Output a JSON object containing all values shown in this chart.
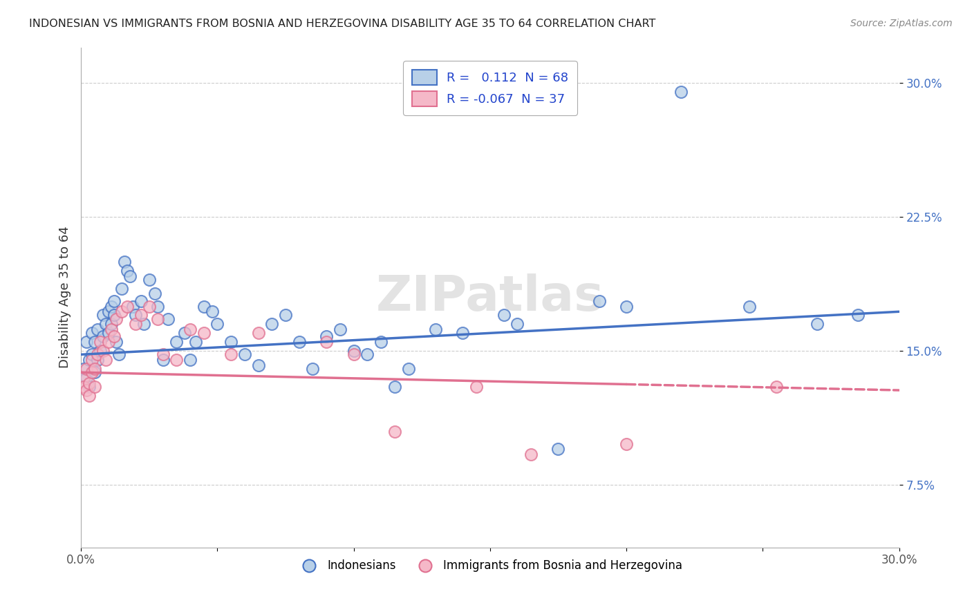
{
  "title": "INDONESIAN VS IMMIGRANTS FROM BOSNIA AND HERZEGOVINA DISABILITY AGE 35 TO 64 CORRELATION CHART",
  "source": "Source: ZipAtlas.com",
  "ylabel": "Disability Age 35 to 64",
  "xlim": [
    0.0,
    0.3
  ],
  "ylim": [
    0.04,
    0.32
  ],
  "xticks": [
    0.0,
    0.05,
    0.1,
    0.15,
    0.2,
    0.25,
    0.3
  ],
  "xticklabels": [
    "0.0%",
    "",
    "",
    "",
    "",
    "",
    "30.0%"
  ],
  "yticks": [
    0.075,
    0.15,
    0.225,
    0.3
  ],
  "yticklabels": [
    "7.5%",
    "15.0%",
    "22.5%",
    "30.0%"
  ],
  "r_blue": 0.112,
  "n_blue": 68,
  "r_pink": -0.067,
  "n_pink": 37,
  "blue_color": "#b8d0e8",
  "pink_color": "#f5b8c8",
  "line_blue": "#4472c4",
  "line_pink": "#e07090",
  "watermark": "ZIPatlas",
  "blue_scatter_x": [
    0.001,
    0.002,
    0.002,
    0.003,
    0.003,
    0.004,
    0.004,
    0.005,
    0.005,
    0.006,
    0.006,
    0.007,
    0.008,
    0.008,
    0.009,
    0.01,
    0.01,
    0.011,
    0.011,
    0.012,
    0.012,
    0.013,
    0.014,
    0.015,
    0.016,
    0.017,
    0.018,
    0.019,
    0.02,
    0.022,
    0.023,
    0.025,
    0.027,
    0.028,
    0.03,
    0.032,
    0.035,
    0.038,
    0.04,
    0.042,
    0.045,
    0.048,
    0.05,
    0.055,
    0.06,
    0.065,
    0.07,
    0.075,
    0.08,
    0.085,
    0.09,
    0.095,
    0.1,
    0.105,
    0.11,
    0.115,
    0.12,
    0.13,
    0.14,
    0.155,
    0.16,
    0.175,
    0.19,
    0.2,
    0.22,
    0.245,
    0.27,
    0.285
  ],
  "blue_scatter_y": [
    0.14,
    0.155,
    0.135,
    0.145,
    0.13,
    0.16,
    0.148,
    0.155,
    0.138,
    0.162,
    0.145,
    0.15,
    0.158,
    0.17,
    0.165,
    0.16,
    0.172,
    0.175,
    0.165,
    0.17,
    0.178,
    0.155,
    0.148,
    0.185,
    0.2,
    0.195,
    0.192,
    0.175,
    0.17,
    0.178,
    0.165,
    0.19,
    0.182,
    0.175,
    0.145,
    0.168,
    0.155,
    0.16,
    0.145,
    0.155,
    0.175,
    0.172,
    0.165,
    0.155,
    0.148,
    0.142,
    0.165,
    0.17,
    0.155,
    0.14,
    0.158,
    0.162,
    0.15,
    0.148,
    0.155,
    0.13,
    0.14,
    0.162,
    0.16,
    0.17,
    0.165,
    0.095,
    0.178,
    0.175,
    0.295,
    0.175,
    0.165,
    0.17
  ],
  "pink_scatter_x": [
    0.001,
    0.001,
    0.002,
    0.002,
    0.003,
    0.003,
    0.004,
    0.004,
    0.005,
    0.005,
    0.006,
    0.007,
    0.008,
    0.009,
    0.01,
    0.011,
    0.012,
    0.013,
    0.015,
    0.017,
    0.02,
    0.022,
    0.025,
    0.028,
    0.03,
    0.035,
    0.04,
    0.045,
    0.055,
    0.065,
    0.09,
    0.1,
    0.115,
    0.145,
    0.165,
    0.2,
    0.255
  ],
  "pink_scatter_y": [
    0.135,
    0.13,
    0.14,
    0.128,
    0.132,
    0.125,
    0.138,
    0.145,
    0.14,
    0.13,
    0.148,
    0.155,
    0.15,
    0.145,
    0.155,
    0.162,
    0.158,
    0.168,
    0.172,
    0.175,
    0.165,
    0.17,
    0.175,
    0.168,
    0.148,
    0.145,
    0.162,
    0.16,
    0.148,
    0.16,
    0.155,
    0.148,
    0.105,
    0.13,
    0.092,
    0.098,
    0.13
  ],
  "blue_line_x0": 0.0,
  "blue_line_y0": 0.148,
  "blue_line_x1": 0.3,
  "blue_line_y1": 0.172,
  "pink_line_x0": 0.0,
  "pink_line_y0": 0.138,
  "pink_line_x1": 0.3,
  "pink_line_y1": 0.128
}
